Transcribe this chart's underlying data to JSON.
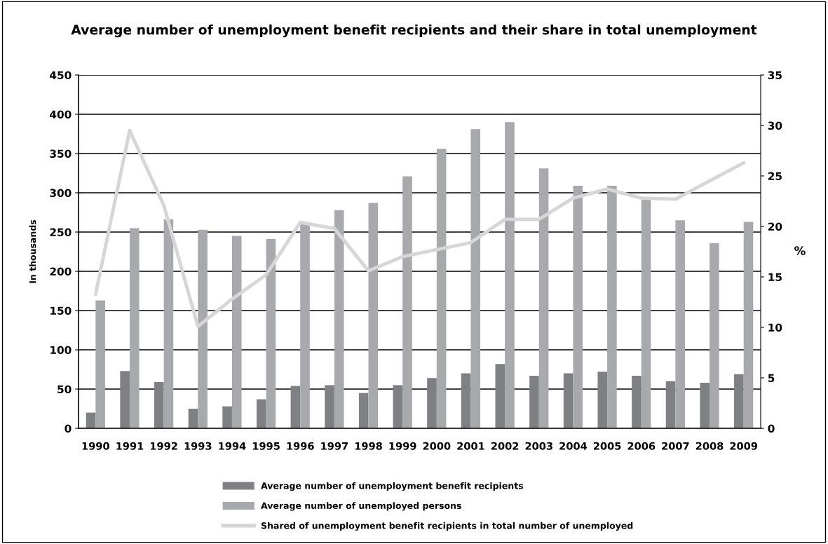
{
  "chart_data": {
    "type": "bar",
    "title": "Average number of unemployment benefit recipients and their share in total unemployment",
    "ylabel": "In thousands",
    "y2label": "%",
    "categories": [
      "1990",
      "1991",
      "1992",
      "1993",
      "1994",
      "1995",
      "1996",
      "1997",
      "1998",
      "1999",
      "2000",
      "2001",
      "2002",
      "2003",
      "2004",
      "2005",
      "2006",
      "2007",
      "2008",
      "2009"
    ],
    "series": [
      {
        "name": "Average number of unemployment benefit recipients",
        "color": "#7f8084",
        "values": [
          20,
          73,
          59,
          25,
          28,
          37,
          54,
          55,
          45,
          55,
          64,
          70,
          82,
          67,
          70,
          72,
          67,
          60,
          58,
          69
        ]
      },
      {
        "name": "Average number of unemployed persons",
        "color": "#a8a9ad",
        "values": [
          163,
          255,
          266,
          253,
          245,
          241,
          260,
          278,
          287,
          321,
          356,
          381,
          390,
          331,
          309,
          309,
          292,
          265,
          236,
          263
        ]
      },
      {
        "name": "Shared of unemployment benefit recipients in total number of unemployed",
        "type": "line",
        "axis": "y2",
        "color": "#d6d6d6",
        "values": [
          13.3,
          29.5,
          22.1,
          10.1,
          12.8,
          15.2,
          20.4,
          19.8,
          15.6,
          17.0,
          17.7,
          18.4,
          20.7,
          20.7,
          22.8,
          23.7,
          22.8,
          22.7,
          24.5,
          26.3
        ]
      }
    ],
    "ylim": [
      0,
      450
    ],
    "yticks": [
      0,
      50,
      100,
      150,
      200,
      250,
      300,
      350,
      400,
      450
    ],
    "y2lim": [
      0,
      35
    ],
    "y2ticks": [
      0,
      5,
      10,
      15,
      20,
      25,
      30,
      35
    ],
    "grid": "y",
    "legend": "bottom",
    "marker": "none",
    "line_style": "solid"
  }
}
